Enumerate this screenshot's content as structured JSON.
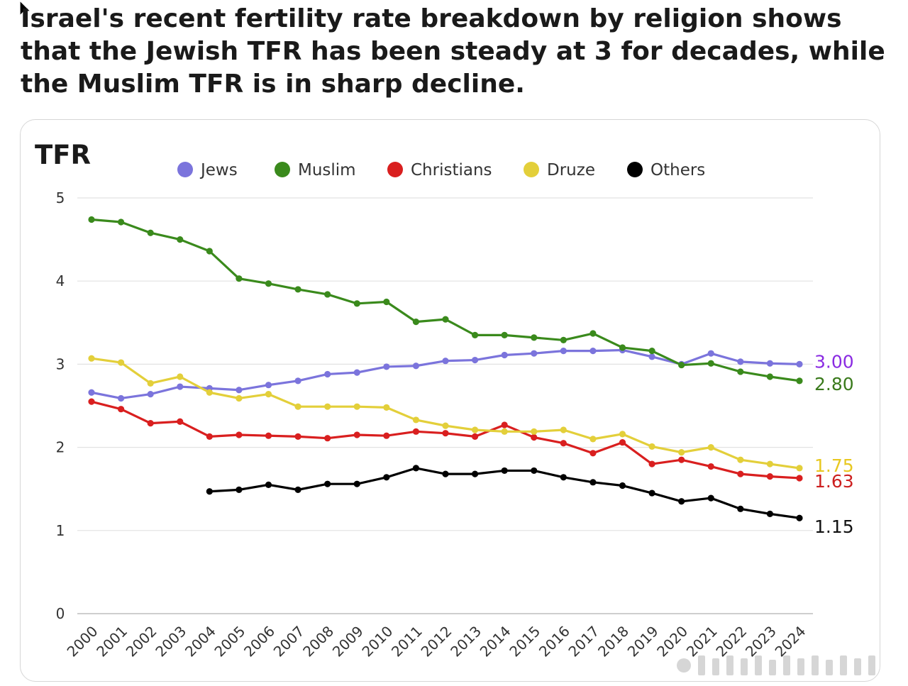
{
  "headline": "Israel's recent fertility rate breakdown by religion shows that the Jewish TFR has been steady at 3 for decades, while the Muslim TFR is in sharp decline.",
  "chart_data": {
    "type": "line",
    "title": "TFR",
    "xlabel": "",
    "ylabel": "TFR",
    "ylim": [
      0,
      5
    ],
    "yticks": [
      0,
      1,
      2,
      3,
      4,
      5
    ],
    "grid": true,
    "legend_position": "top",
    "x": [
      2000,
      2001,
      2002,
      2003,
      2004,
      2005,
      2006,
      2007,
      2008,
      2009,
      2010,
      2011,
      2012,
      2013,
      2014,
      2015,
      2016,
      2017,
      2018,
      2019,
      2020,
      2021,
      2022,
      2023,
      2024
    ],
    "series": [
      {
        "name": "Jews",
        "color": "#7b74dc",
        "end_label": "3.00",
        "end_label_color": "#8a2be2",
        "values": [
          2.66,
          2.59,
          2.64,
          2.73,
          2.71,
          2.69,
          2.75,
          2.8,
          2.88,
          2.9,
          2.97,
          2.98,
          3.04,
          3.05,
          3.11,
          3.13,
          3.16,
          3.16,
          3.17,
          3.09,
          3.0,
          3.13,
          3.03,
          3.01,
          3.0
        ]
      },
      {
        "name": "Muslim",
        "color": "#3a8a1c",
        "end_label": "2.80",
        "end_label_color": "#3a7a1c",
        "values": [
          4.74,
          4.71,
          4.58,
          4.5,
          4.36,
          4.03,
          3.97,
          3.9,
          3.84,
          3.73,
          3.75,
          3.51,
          3.54,
          3.35,
          3.35,
          3.32,
          3.29,
          3.37,
          3.2,
          3.16,
          2.99,
          3.01,
          2.91,
          2.85,
          2.8
        ]
      },
      {
        "name": "Christians",
        "color": "#d91f1f",
        "end_label": "1.63",
        "end_label_color": "#cc1f1f",
        "values": [
          2.55,
          2.46,
          2.29,
          2.31,
          2.13,
          2.15,
          2.14,
          2.13,
          2.11,
          2.15,
          2.14,
          2.19,
          2.17,
          2.13,
          2.27,
          2.12,
          2.05,
          1.93,
          2.06,
          1.8,
          1.85,
          1.77,
          1.68,
          1.65,
          1.63
        ]
      },
      {
        "name": "Druze",
        "color": "#e3cf3a",
        "end_label": "1.75",
        "end_label_color": "#e8c820",
        "values": [
          3.07,
          3.02,
          2.77,
          2.85,
          2.66,
          2.59,
          2.64,
          2.49,
          2.49,
          2.49,
          2.48,
          2.33,
          2.26,
          2.21,
          2.19,
          2.19,
          2.21,
          2.1,
          2.16,
          2.01,
          1.94,
          2.0,
          1.85,
          1.8,
          1.75
        ]
      },
      {
        "name": "Others",
        "color": "#000000",
        "end_label": "1.15",
        "end_label_color": "#111111",
        "values": [
          null,
          null,
          null,
          null,
          1.47,
          1.49,
          1.55,
          1.49,
          1.56,
          1.56,
          1.64,
          1.75,
          1.68,
          1.68,
          1.72,
          1.72,
          1.64,
          1.58,
          1.54,
          1.45,
          1.35,
          1.39,
          1.26,
          1.2,
          1.15
        ]
      }
    ]
  }
}
